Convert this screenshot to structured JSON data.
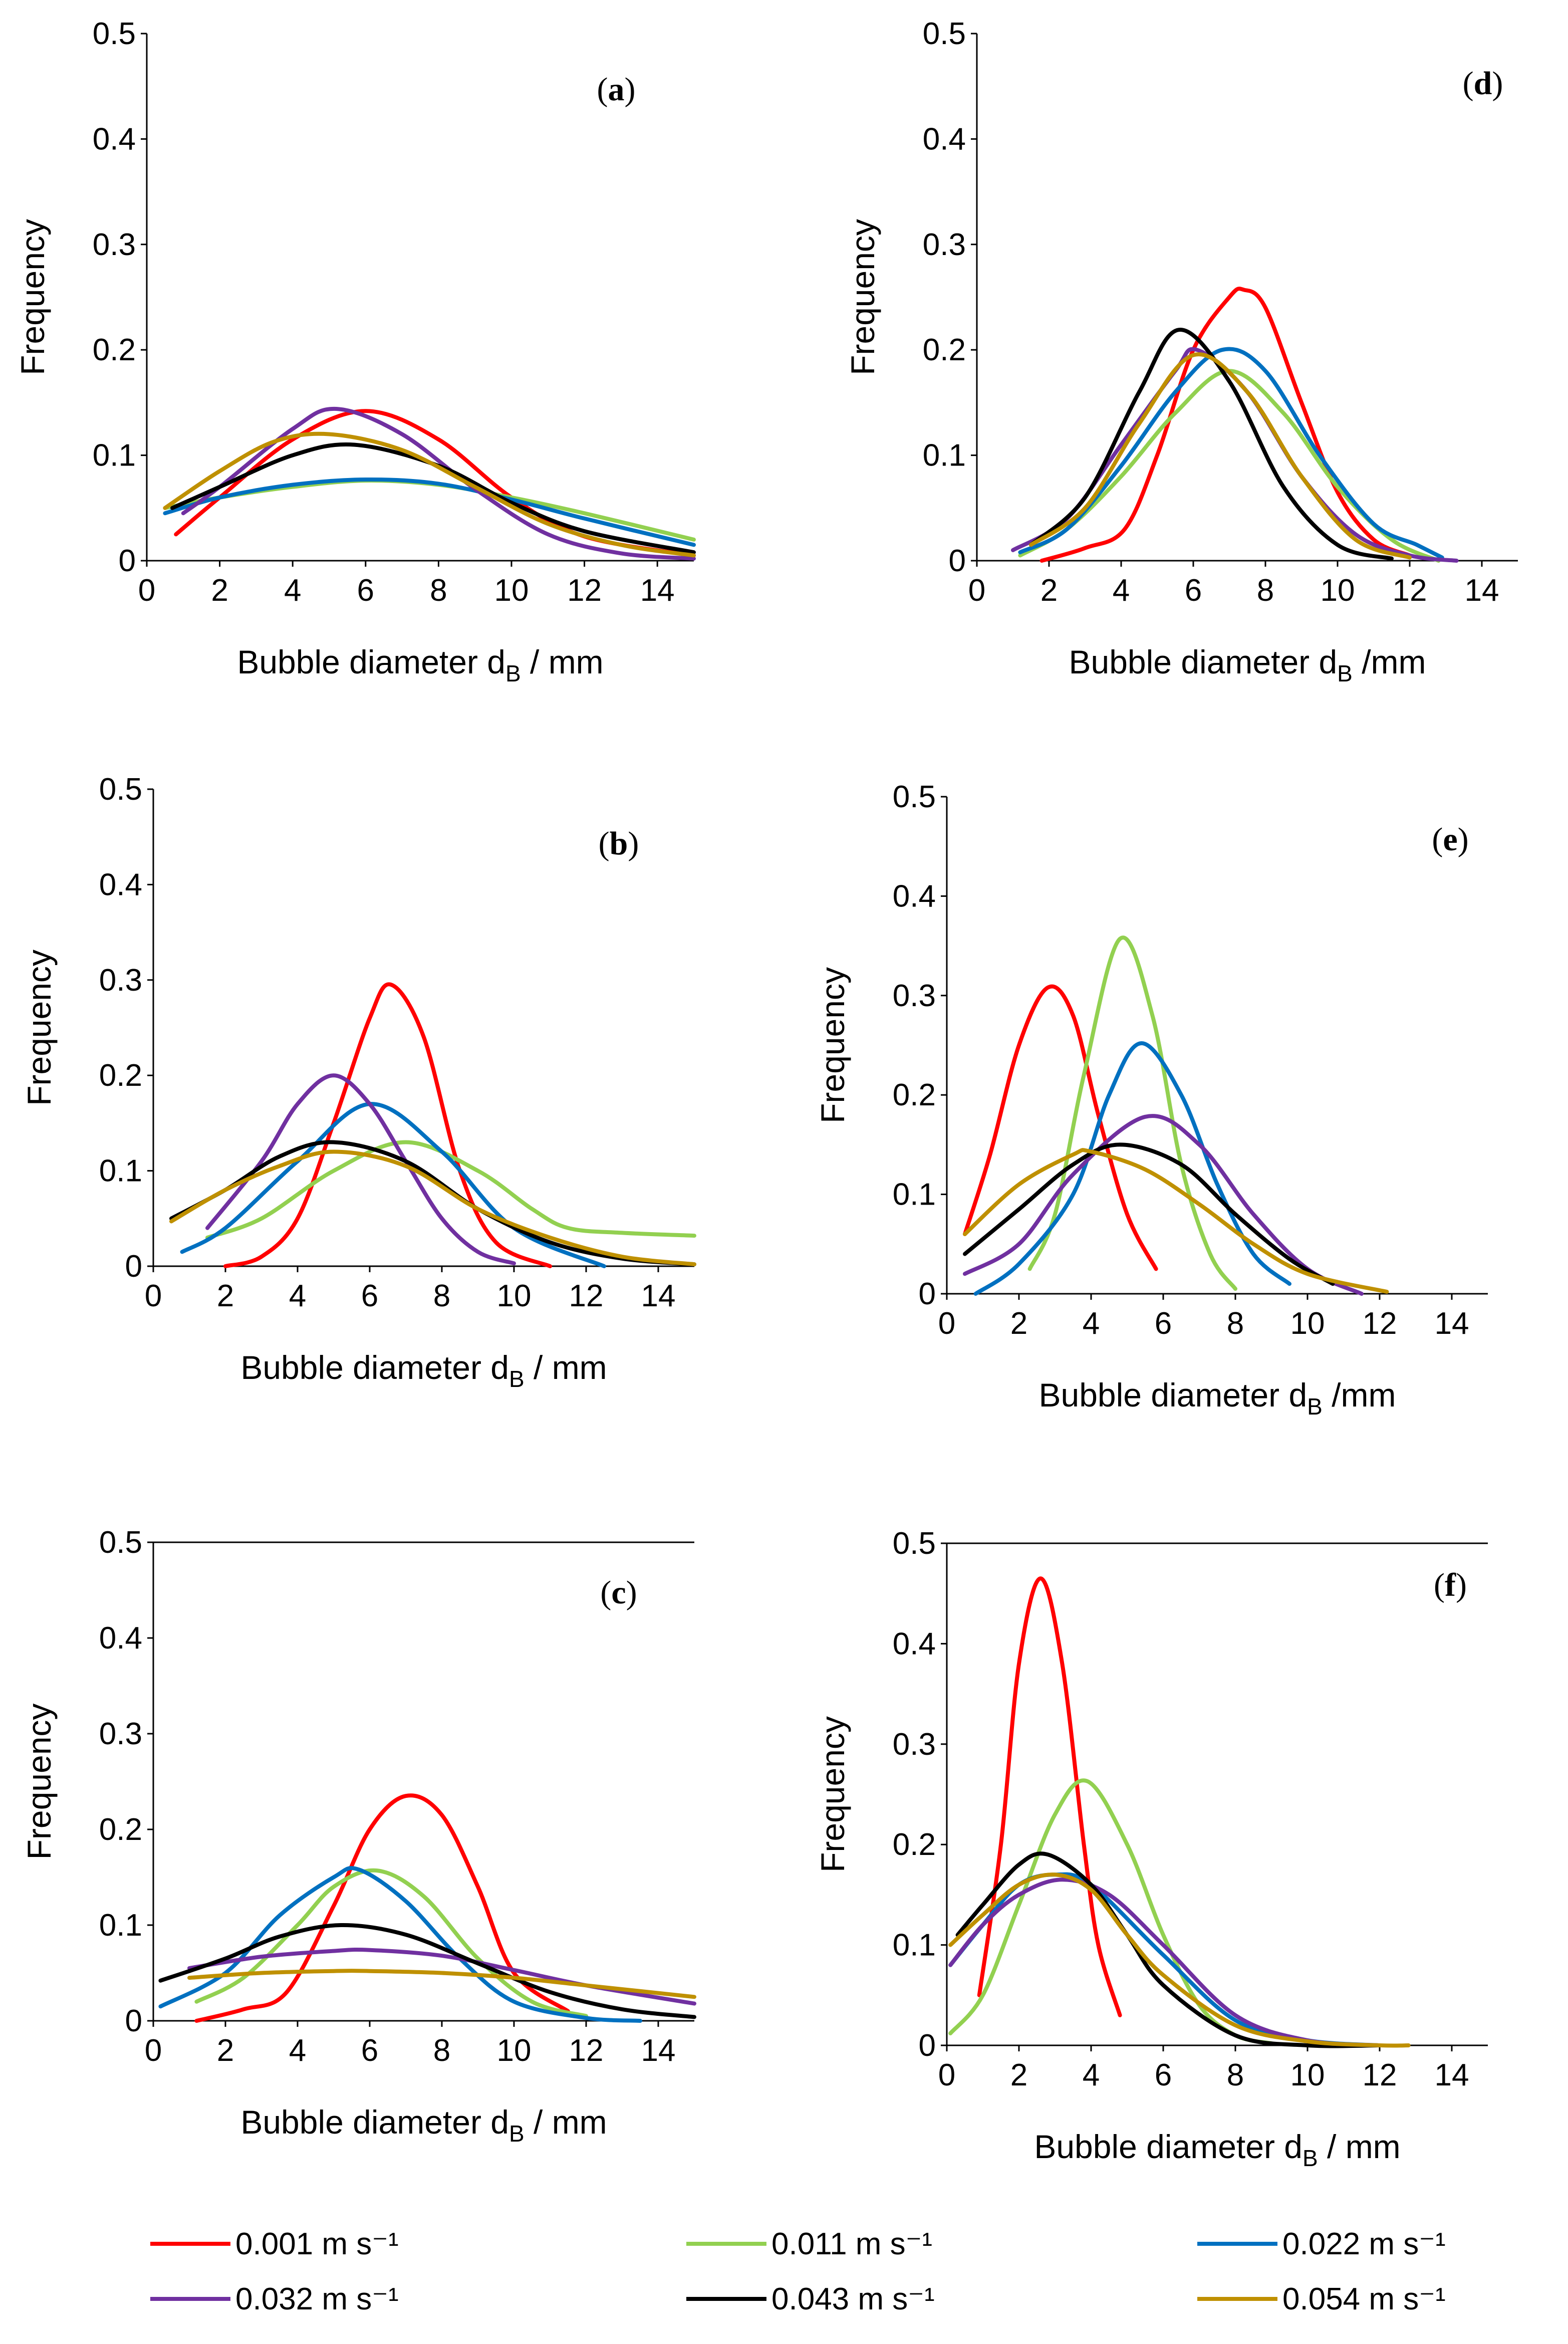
{
  "legend": [
    {
      "label": "0.001 m s⁻¹",
      "color": "#ff0000"
    },
    {
      "label": "0.011 m s⁻¹",
      "color": "#92d050"
    },
    {
      "label": "0.022 m s⁻¹",
      "color": "#0070c0"
    },
    {
      "label": "0.032 m s⁻¹",
      "color": "#7030a0"
    },
    {
      "label": "0.043 m s⁻¹",
      "color": "#000000"
    },
    {
      "label": "0.054 m s⁻¹",
      "color": "#bf9000"
    }
  ],
  "chart_data": [
    {
      "type": "line",
      "panel_label": "a",
      "ylabel": "Frequency",
      "xlabel_main": "Bubble diameter d",
      "xlabel_sub": "B",
      "xlabel_unit": " / mm",
      "xlim": [
        0,
        15
      ],
      "ylim": [
        0,
        0.5
      ],
      "top_border": false,
      "xticks": [
        0,
        2,
        4,
        6,
        8,
        10,
        12,
        14
      ],
      "yticks": [
        0,
        0.1,
        0.2,
        0.3,
        0.4,
        0.5
      ],
      "ytick_labels": [
        "0",
        "0.1",
        "0.2",
        "0.3",
        "0.4",
        "0.5"
      ],
      "series": [
        {
          "name": "0.001 m s⁻¹",
          "x": [
            0.8,
            2,
            4,
            6,
            8,
            10,
            12,
            15
          ],
          "y": [
            0.025,
            0.06,
            0.115,
            0.142,
            0.115,
            0.06,
            0.023,
            0.005
          ]
        },
        {
          "name": "0.011 m s⁻¹",
          "x": [
            0.5,
            2,
            4,
            6,
            8,
            10,
            12,
            15
          ],
          "y": [
            0.05,
            0.06,
            0.07,
            0.076,
            0.072,
            0.06,
            0.045,
            0.02
          ]
        },
        {
          "name": "0.022 m s⁻¹",
          "x": [
            0.5,
            2,
            4,
            6,
            8,
            10,
            12,
            15
          ],
          "y": [
            0.045,
            0.06,
            0.072,
            0.077,
            0.073,
            0.058,
            0.04,
            0.015
          ]
        },
        {
          "name": "0.032 m s⁻¹",
          "x": [
            1,
            2,
            4,
            5.2,
            7,
            9,
            11,
            13,
            15
          ],
          "y": [
            0.045,
            0.07,
            0.125,
            0.144,
            0.12,
            0.068,
            0.025,
            0.007,
            0.002
          ]
        },
        {
          "name": "0.043 m s⁻¹",
          "x": [
            0.7,
            2,
            4,
            5.7,
            8,
            10,
            12,
            15
          ],
          "y": [
            0.05,
            0.07,
            0.1,
            0.11,
            0.09,
            0.055,
            0.028,
            0.008
          ]
        },
        {
          "name": "0.054 m s⁻¹",
          "x": [
            0.5,
            2,
            3.5,
            5,
            7,
            9,
            11,
            13,
            15
          ],
          "y": [
            0.05,
            0.085,
            0.113,
            0.12,
            0.105,
            0.07,
            0.035,
            0.015,
            0.005
          ]
        }
      ]
    },
    {
      "type": "line",
      "panel_label": "b",
      "ylabel": "Frequency",
      "xlabel_main": "Bubble diameter d",
      "xlabel_sub": "B",
      "xlabel_unit": " / mm",
      "xlim": [
        0,
        15
      ],
      "ylim": [
        0,
        0.5
      ],
      "top_border": false,
      "xticks": [
        0,
        2,
        4,
        6,
        8,
        10,
        12,
        14
      ],
      "yticks": [
        0,
        0.1,
        0.2,
        0.3,
        0.4,
        0.5
      ],
      "ytick_labels": [
        "0",
        "0.1",
        "0.2",
        "0.3",
        "0.4",
        "0.5"
      ],
      "series": [
        {
          "name": "0.001 m s⁻¹",
          "x": [
            2,
            3,
            4,
            5,
            6,
            6.6,
            7.5,
            8.5,
            9.5,
            11
          ],
          "y": [
            0,
            0.01,
            0.05,
            0.15,
            0.26,
            0.295,
            0.24,
            0.1,
            0.025,
            0
          ]
        },
        {
          "name": "0.011 m s⁻¹",
          "x": [
            1.5,
            3,
            5,
            7,
            9,
            10.5,
            11.5,
            13,
            15
          ],
          "y": [
            0.03,
            0.05,
            0.1,
            0.13,
            0.1,
            0.06,
            0.04,
            0.035,
            0.032
          ]
        },
        {
          "name": "0.022 m s⁻¹",
          "x": [
            0.8,
            2,
            4,
            6,
            8,
            10,
            12.5
          ],
          "y": [
            0.015,
            0.04,
            0.11,
            0.17,
            0.12,
            0.04,
            0
          ]
        },
        {
          "name": "0.032 m s⁻¹",
          "x": [
            1.5,
            3,
            4,
            5,
            6,
            7,
            8,
            9,
            10
          ],
          "y": [
            0.04,
            0.11,
            0.17,
            0.2,
            0.17,
            0.11,
            0.05,
            0.015,
            0.003
          ]
        },
        {
          "name": "0.043 m s⁻¹",
          "x": [
            0.5,
            2,
            3.5,
            5,
            7,
            9,
            11,
            13,
            15
          ],
          "y": [
            0.05,
            0.08,
            0.115,
            0.13,
            0.11,
            0.06,
            0.025,
            0.008,
            0.002
          ]
        },
        {
          "name": "0.054 m s⁻¹",
          "x": [
            0.5,
            2,
            3.5,
            5,
            7,
            9,
            11,
            13,
            15
          ],
          "y": [
            0.047,
            0.08,
            0.105,
            0.12,
            0.105,
            0.06,
            0.03,
            0.01,
            0.002
          ]
        }
      ]
    },
    {
      "type": "line",
      "panel_label": "c",
      "ylabel": "Frequency",
      "xlabel_main": "Bubble diameter d",
      "xlabel_sub": "B",
      "xlabel_unit": " / mm",
      "xlim": [
        0,
        15
      ],
      "ylim": [
        0,
        0.5
      ],
      "top_border": true,
      "xticks": [
        0,
        2,
        4,
        6,
        8,
        10,
        12,
        14
      ],
      "yticks": [
        0,
        0.1,
        0.2,
        0.3,
        0.4,
        0.5
      ],
      "ytick_labels": [
        "0",
        "0.1",
        "0.2",
        "0.3",
        "0.4",
        "0.5"
      ],
      "series": [
        {
          "name": "0.001 m s⁻¹",
          "x": [
            1.2,
            2.5,
            3.7,
            5,
            6,
            7,
            8,
            9,
            10,
            11.5
          ],
          "y": [
            0,
            0.012,
            0.03,
            0.12,
            0.2,
            0.235,
            0.215,
            0.14,
            0.05,
            0.01
          ]
        },
        {
          "name": "0.011 m s⁻¹",
          "x": [
            1.2,
            2.5,
            4,
            5,
            6.2,
            7.5,
            9,
            10.5,
            12
          ],
          "y": [
            0.02,
            0.045,
            0.1,
            0.14,
            0.157,
            0.13,
            0.065,
            0.02,
            0.005
          ]
        },
        {
          "name": "0.022 m s⁻¹",
          "x": [
            0.2,
            2,
            3.5,
            5,
            5.7,
            7,
            8.5,
            10,
            12,
            13.5
          ],
          "y": [
            0.015,
            0.05,
            0.11,
            0.15,
            0.158,
            0.125,
            0.065,
            0.02,
            0.003,
            0
          ]
        },
        {
          "name": "0.032 m s⁻¹",
          "x": [
            1,
            3,
            5,
            6,
            8,
            10,
            12,
            15
          ],
          "y": [
            0.055,
            0.067,
            0.073,
            0.074,
            0.068,
            0.053,
            0.037,
            0.018
          ]
        },
        {
          "name": "0.043 m s⁻¹",
          "x": [
            0.2,
            2,
            3.5,
            5.2,
            7,
            9,
            11,
            13,
            15
          ],
          "y": [
            0.042,
            0.065,
            0.088,
            0.1,
            0.09,
            0.06,
            0.03,
            0.012,
            0.004
          ]
        },
        {
          "name": "0.054 m s⁻¹",
          "x": [
            1,
            3,
            5,
            6,
            8,
            10,
            12,
            15
          ],
          "y": [
            0.045,
            0.05,
            0.052,
            0.052,
            0.05,
            0.045,
            0.037,
            0.025
          ]
        }
      ]
    },
    {
      "type": "line",
      "panel_label": "d",
      "ylabel": "Frequency",
      "xlabel_main": "Bubble diameter d",
      "xlabel_sub": "B",
      "xlabel_unit": " /mm",
      "xlim": [
        0,
        15
      ],
      "ylim": [
        0,
        0.5
      ],
      "top_border": false,
      "xticks": [
        0,
        2,
        4,
        6,
        8,
        10,
        12,
        14
      ],
      "yticks": [
        0,
        0.1,
        0.2,
        0.3,
        0.4,
        0.5
      ],
      "ytick_labels": [
        "0",
        "0.1",
        "0.2",
        "0.3",
        "0.4",
        "0.5"
      ],
      "series": [
        {
          "name": "0.001 m s⁻¹",
          "x": [
            1.8,
            3,
            4.1,
            5,
            6,
            7,
            7.4,
            8,
            9,
            10,
            11,
            12
          ],
          "y": [
            0,
            0.012,
            0.03,
            0.1,
            0.2,
            0.25,
            0.257,
            0.24,
            0.15,
            0.065,
            0.02,
            0.005
          ]
        },
        {
          "name": "0.011 m s⁻¹",
          "x": [
            1.2,
            2.5,
            4,
            5.5,
            7,
            8.5,
            10,
            11.5,
            12.8
          ],
          "y": [
            0.005,
            0.03,
            0.08,
            0.14,
            0.18,
            0.14,
            0.07,
            0.02,
            0
          ]
        },
        {
          "name": "0.022 m s⁻¹",
          "x": [
            1.2,
            2.5,
            4,
            5.5,
            6.8,
            8,
            9.5,
            11,
            12.2,
            12.9
          ],
          "y": [
            0.008,
            0.03,
            0.09,
            0.16,
            0.2,
            0.18,
            0.1,
            0.035,
            0.015,
            0.003
          ]
        },
        {
          "name": "0.032 m s⁻¹",
          "x": [
            1,
            2.5,
            4,
            5.5,
            6.1,
            7.5,
            9,
            10.5,
            12,
            13.3
          ],
          "y": [
            0.01,
            0.04,
            0.11,
            0.18,
            0.2,
            0.16,
            0.08,
            0.025,
            0.005,
            0
          ]
        },
        {
          "name": "0.043 m s⁻¹",
          "x": [
            1.5,
            3,
            4.5,
            5.6,
            7,
            8.5,
            10,
            11.5
          ],
          "y": [
            0.015,
            0.06,
            0.16,
            0.219,
            0.17,
            0.07,
            0.015,
            0.002
          ]
        },
        {
          "name": "0.054 m s⁻¹",
          "x": [
            1.5,
            3,
            4.5,
            6,
            7.5,
            9,
            10.5,
            12
          ],
          "y": [
            0.015,
            0.05,
            0.13,
            0.195,
            0.16,
            0.08,
            0.02,
            0.003
          ]
        }
      ]
    },
    {
      "type": "line",
      "panel_label": "e",
      "ylabel": "Frequency",
      "xlabel_main": "Bubble diameter d",
      "xlabel_sub": "B",
      "xlabel_unit": " /mm",
      "xlim": [
        0,
        15
      ],
      "ylim": [
        0,
        0.5
      ],
      "top_border": false,
      "xticks": [
        0,
        2,
        4,
        6,
        8,
        10,
        12,
        14
      ],
      "yticks": [
        0,
        0.1,
        0.2,
        0.3,
        0.4,
        0.5
      ],
      "ytick_labels": [
        "0",
        "0.1",
        "0.2",
        "0.3",
        "0.4",
        "0.5"
      ],
      "series": [
        {
          "name": "0.001 m s⁻¹",
          "x": [
            0.5,
            1.2,
            2,
            2.8,
            3.5,
            4.2,
            5,
            5.8
          ],
          "y": [
            0.06,
            0.14,
            0.25,
            0.308,
            0.28,
            0.18,
            0.08,
            0.025
          ]
        },
        {
          "name": "0.011 m s⁻¹",
          "x": [
            2.3,
            3,
            3.8,
            4.8,
            5.7,
            6.5,
            7.3,
            8
          ],
          "y": [
            0.025,
            0.08,
            0.22,
            0.357,
            0.28,
            0.13,
            0.04,
            0.005
          ]
        },
        {
          "name": "0.022 m s⁻¹",
          "x": [
            0.8,
            2,
            3.5,
            4.5,
            5.4,
            6.5,
            7.5,
            8.5,
            9.5
          ],
          "y": [
            0,
            0.03,
            0.1,
            0.2,
            0.252,
            0.2,
            0.11,
            0.04,
            0.01
          ]
        },
        {
          "name": "0.032 m s⁻¹",
          "x": [
            0.5,
            2,
            3.5,
            5.5,
            7,
            8.5,
            10,
            11.5
          ],
          "y": [
            0.02,
            0.05,
            0.12,
            0.178,
            0.15,
            0.08,
            0.025,
            0
          ]
        },
        {
          "name": "0.043 m s⁻¹",
          "x": [
            0.5,
            2,
            3.5,
            4.8,
            6.5,
            8,
            9.5,
            10.7
          ],
          "y": [
            0.04,
            0.085,
            0.13,
            0.15,
            0.13,
            0.08,
            0.035,
            0.01
          ]
        },
        {
          "name": "0.054 m s⁻¹",
          "x": [
            0.5,
            2,
            3.5,
            4,
            5.5,
            7,
            8.5,
            10,
            12.2
          ],
          "y": [
            0.06,
            0.11,
            0.14,
            0.143,
            0.125,
            0.09,
            0.05,
            0.02,
            0.002
          ]
        }
      ]
    },
    {
      "type": "line",
      "panel_label": "f",
      "ylabel": "Frequency",
      "xlabel_main": "Bubble diameter d",
      "xlabel_sub": "B",
      "xlabel_unit": " / mm",
      "xlim": [
        0,
        15
      ],
      "ylim": [
        0,
        0.5
      ],
      "top_border": true,
      "xticks": [
        0,
        2,
        4,
        6,
        8,
        10,
        12,
        14
      ],
      "yticks": [
        0,
        0.1,
        0.2,
        0.3,
        0.4,
        0.5
      ],
      "ytick_labels": [
        "0",
        "0.1",
        "0.2",
        "0.3",
        "0.4",
        "0.5"
      ],
      "series": [
        {
          "name": "0.001 m s⁻¹",
          "x": [
            0.9,
            1.5,
            2,
            2.6,
            3.2,
            3.8,
            4.2,
            4.8
          ],
          "y": [
            0.05,
            0.2,
            0.38,
            0.465,
            0.38,
            0.2,
            0.1,
            0.03
          ]
        },
        {
          "name": "0.011 m s⁻¹",
          "x": [
            0.1,
            1,
            2,
            3,
            3.9,
            5,
            6,
            7,
            8,
            9
          ],
          "y": [
            0.012,
            0.05,
            0.14,
            0.23,
            0.263,
            0.2,
            0.11,
            0.04,
            0.01,
            0.002
          ]
        },
        {
          "name": "0.022 m s⁻¹",
          "x": [
            0.1,
            1,
            2,
            3,
            4,
            6,
            8,
            10,
            12
          ],
          "y": [
            0.08,
            0.12,
            0.16,
            0.17,
            0.16,
            0.09,
            0.025,
            0.005,
            0
          ]
        },
        {
          "name": "0.032 m s⁻¹",
          "x": [
            0.1,
            1,
            2,
            3.2,
            4.5,
            6,
            8,
            10,
            12
          ],
          "y": [
            0.08,
            0.12,
            0.15,
            0.165,
            0.15,
            0.1,
            0.03,
            0.005,
            0
          ]
        },
        {
          "name": "0.043 m s⁻¹",
          "x": [
            0.3,
            1,
            2,
            2.8,
            4,
            5,
            6,
            8,
            10,
            12
          ],
          "y": [
            0.11,
            0.14,
            0.18,
            0.19,
            0.16,
            0.11,
            0.06,
            0.01,
            0,
            0
          ]
        },
        {
          "name": "0.054 m s⁻¹",
          "x": [
            0.1,
            1,
            2,
            3,
            4,
            5,
            6,
            8,
            10,
            12,
            12.8
          ],
          "y": [
            0.1,
            0.13,
            0.16,
            0.17,
            0.155,
            0.11,
            0.07,
            0.02,
            0.004,
            0,
            0
          ]
        }
      ]
    }
  ]
}
